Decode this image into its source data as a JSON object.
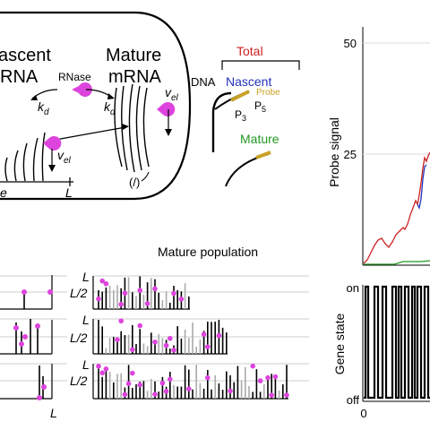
{
  "cell": {
    "nascent_label_line1": "ascent",
    "nascent_label_line2": "RNA",
    "mature_label_line1": "Mature",
    "mature_label_line2": "mRNA",
    "rnase_label": "RNase",
    "kd_left": "k",
    "kd_left_sub": "d",
    "kd_right": "k",
    "kd_right_sub": "d",
    "vel_right": "v",
    "vel_right_sub": "el",
    "vel_left": "v",
    "vel_left_sub": "el",
    "gene_axis_partial": "e",
    "gene_axis_end": "L",
    "empty_set_symbol": "(/)"
  },
  "probe_diagram": {
    "total_label": "Total",
    "dna_label": "DNA",
    "nascent_label": "Nascent",
    "probe_label": "Probe",
    "p3_label": "P",
    "p3_sub": "3",
    "p5_label": "P",
    "p5_sub": "5",
    "mature_label": "Mature"
  },
  "population": {
    "title": "Mature population",
    "row_labels": [
      {
        "top": "L",
        "mid": "L/2"
      },
      {
        "top": "L",
        "mid": "L/2"
      },
      {
        "top": "L",
        "mid": "L/2"
      }
    ],
    "left_x_label": "L"
  },
  "probe_chart": {
    "ylabel": "Probe signal",
    "yticks": [
      "50",
      "25"
    ],
    "colors": {
      "total": "#cc2222",
      "nascent": "#2233bb",
      "mature": "#229922"
    }
  },
  "gene_chart": {
    "ylabel": "Gene state",
    "ytick_on": "on",
    "ytick_off": "off",
    "xtick_zero": "0"
  },
  "colors": {
    "magenta": "#dd44dd",
    "probe": "#c9a227",
    "red": "#cc2222",
    "blue": "#2233bb",
    "green": "#229922"
  }
}
